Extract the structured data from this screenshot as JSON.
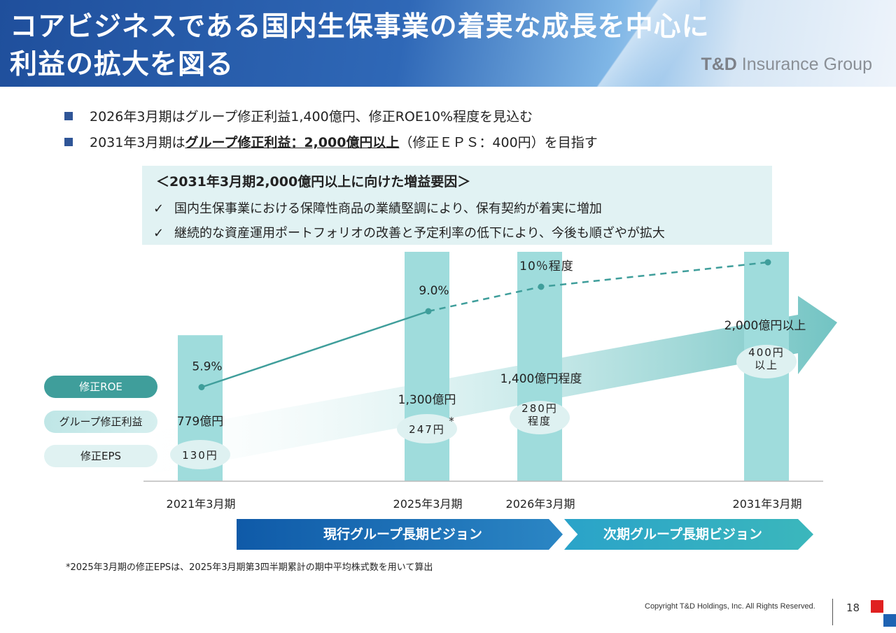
{
  "header": {
    "title": "コアビジネスである国内生保事業の着実な成長を中心に\n利益の拡大を図る",
    "logo_brand": "T&D",
    "logo_text": " Insurance Group"
  },
  "bullets": [
    {
      "pre": "2026年3月期はグループ修正利益1,400億円、修正ROE10%程度を見込む",
      "emph": "",
      "post": ""
    },
    {
      "pre": "2031年3月期は",
      "emph": "グループ修正利益：2,000億円以上",
      "post": "（修正ＥＰＳ：400円）を目指す"
    }
  ],
  "box": {
    "title": "＜2031年3月期2,000億円以上に向けた増益要因＞",
    "check_mark": "✓",
    "items": [
      "国内生保事業における保障性商品の業績堅調により、保有契約が着実に増加",
      "継続的な資産運用ポートフォリオの改善と予定利率の低下により、今後も順ざやが拡大"
    ]
  },
  "legend_pills": {
    "roe": "修正ROE",
    "profit": "グループ修正利益",
    "eps": "修正EPS"
  },
  "chart_data": {
    "type": "bar",
    "categories": [
      "2021年3月期",
      "2025年3月期",
      "2026年3月期",
      "2031年3月期"
    ],
    "series": [
      {
        "name": "グループ修正利益",
        "values": [
          779,
          1300,
          1400,
          2000
        ],
        "labels": [
          "779億円",
          "1,300億円",
          "1,400億円程度",
          "2,000億円以上"
        ]
      },
      {
        "name": "修正ROE",
        "values": [
          5.9,
          9.0,
          10,
          11
        ],
        "labels": [
          "5.9%",
          "9.0%",
          "10％程度",
          ""
        ],
        "projected_from_index": 1
      },
      {
        "name": "修正EPS",
        "values": [
          130,
          247,
          280,
          400
        ],
        "labels": [
          "130円",
          "247円",
          "280円\n程度",
          "400円\n以上"
        ],
        "footnote_marks": [
          "",
          "*",
          "",
          ""
        ]
      }
    ],
    "colors": {
      "bar": "#9fdcdc",
      "bar_top_fade": "#e6f6f6",
      "roe_line": "#3f9e9b",
      "eps_ellipse": "#def1f1",
      "arrow": "#7ec8c6",
      "axis": "#bbbbbb"
    }
  },
  "vision_bar": {
    "current": "現行グループ長期ビジョン",
    "next": "次期グループ長期ビジョン",
    "colors": {
      "current_start": "#0f5aa8",
      "current_end": "#2b86c4",
      "next_start": "#2aa3c9",
      "next_end": "#3bb7bc"
    }
  },
  "footnote": "*2025年3月期の修正EPSは、2025年3月期第3四半期累計の期中平均株式数を用いて算出",
  "footer": {
    "copyright": "Copyright T&D Holdings, Inc. All Rights Reserved.",
    "page": "18"
  }
}
